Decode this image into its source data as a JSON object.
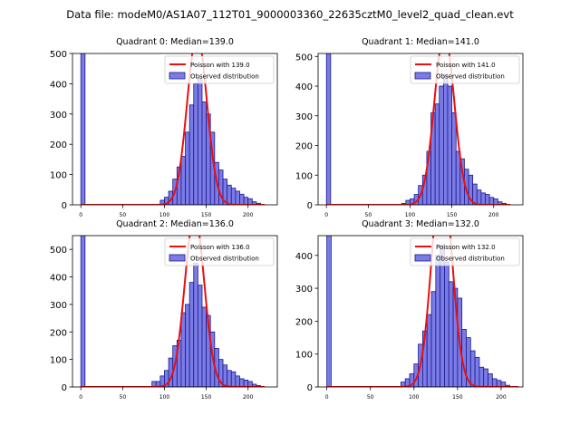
{
  "figure": {
    "suptitle": "Data file: modeM0/AS1A07_112T01_9000003360_22635cztM0_level2_quad_clean.evt"
  },
  "colors": {
    "bar_fill": "#7b7be6",
    "bar_edge": "#1a1a8c",
    "poisson_line": "#e81010"
  },
  "chart_data": [
    {
      "type": "bar",
      "title": "Quadrant 0: Median=139.0",
      "median": 139.0,
      "bin_width": 5,
      "xlim": [
        -10,
        235
      ],
      "ylim": [
        0,
        500
      ],
      "xticks": [
        0,
        50,
        100,
        150,
        200
      ],
      "yticks": [
        0,
        100,
        200,
        300,
        400,
        500
      ],
      "legend": [
        "Poisson with 139.0",
        "Observed distribution"
      ],
      "legend_position": "top-right",
      "bins": [
        [
          0,
          500
        ],
        [
          95,
          15
        ],
        [
          100,
          25
        ],
        [
          105,
          45
        ],
        [
          110,
          85
        ],
        [
          115,
          125
        ],
        [
          120,
          160
        ],
        [
          125,
          240
        ],
        [
          130,
          330
        ],
        [
          135,
          400
        ],
        [
          140,
          420
        ],
        [
          145,
          340
        ],
        [
          150,
          300
        ],
        [
          155,
          240
        ],
        [
          160,
          140
        ],
        [
          165,
          115
        ],
        [
          170,
          85
        ],
        [
          175,
          65
        ],
        [
          180,
          55
        ],
        [
          185,
          45
        ],
        [
          190,
          35
        ],
        [
          195,
          25
        ],
        [
          200,
          20
        ],
        [
          205,
          10
        ],
        [
          210,
          5
        ]
      ]
    },
    {
      "type": "bar",
      "title": "Quadrant 1: Median=141.0",
      "median": 141.0,
      "bin_width": 5,
      "xlim": [
        -10,
        235
      ],
      "ylim": [
        0,
        510
      ],
      "xticks": [
        0,
        50,
        100,
        150,
        200
      ],
      "yticks": [
        0,
        100,
        200,
        300,
        400,
        500
      ],
      "legend": [
        "Poisson with 141.0",
        "Observed distribution"
      ],
      "legend_position": "top-right",
      "bins": [
        [
          0,
          510
        ],
        [
          90,
          5
        ],
        [
          95,
          15
        ],
        [
          100,
          20
        ],
        [
          105,
          35
        ],
        [
          110,
          65
        ],
        [
          115,
          100
        ],
        [
          120,
          180
        ],
        [
          125,
          310
        ],
        [
          130,
          340
        ],
        [
          135,
          400
        ],
        [
          140,
          440
        ],
        [
          145,
          400
        ],
        [
          150,
          310
        ],
        [
          155,
          180
        ],
        [
          160,
          155
        ],
        [
          165,
          120
        ],
        [
          170,
          100
        ],
        [
          175,
          70
        ],
        [
          180,
          50
        ],
        [
          185,
          40
        ],
        [
          190,
          35
        ],
        [
          195,
          25
        ],
        [
          200,
          20
        ],
        [
          205,
          10
        ],
        [
          210,
          5
        ]
      ]
    },
    {
      "type": "bar",
      "title": "Quadrant 2: Median=136.0",
      "median": 136.0,
      "bin_width": 5,
      "xlim": [
        -10,
        235
      ],
      "ylim": [
        0,
        550
      ],
      "xticks": [
        0,
        50,
        100,
        150,
        200
      ],
      "yticks": [
        0,
        100,
        200,
        300,
        400,
        500
      ],
      "legend": [
        "Poisson with 136.0",
        "Observed distribution"
      ],
      "legend_position": "top-right",
      "bins": [
        [
          0,
          550
        ],
        [
          85,
          20
        ],
        [
          90,
          20
        ],
        [
          95,
          40
        ],
        [
          100,
          60
        ],
        [
          105,
          105
        ],
        [
          110,
          150
        ],
        [
          115,
          170
        ],
        [
          120,
          270
        ],
        [
          125,
          300
        ],
        [
          130,
          380
        ],
        [
          135,
          450
        ],
        [
          140,
          370
        ],
        [
          145,
          290
        ],
        [
          150,
          260
        ],
        [
          155,
          200
        ],
        [
          160,
          140
        ],
        [
          165,
          100
        ],
        [
          170,
          80
        ],
        [
          175,
          60
        ],
        [
          180,
          55
        ],
        [
          185,
          40
        ],
        [
          190,
          30
        ],
        [
          195,
          25
        ],
        [
          200,
          20
        ],
        [
          205,
          10
        ],
        [
          210,
          5
        ]
      ]
    },
    {
      "type": "bar",
      "title": "Quadrant 3: Median=132.0",
      "median": 132.0,
      "bin_width": 5,
      "xlim": [
        -10,
        225
      ],
      "ylim": [
        0,
        460
      ],
      "xticks": [
        0,
        50,
        100,
        150,
        200
      ],
      "yticks": [
        0,
        100,
        200,
        300,
        400
      ],
      "legend": [
        "Poisson with 132.0",
        "Observed distribution"
      ],
      "legend_position": "top-right",
      "bins": [
        [
          0,
          460
        ],
        [
          85,
          15
        ],
        [
          90,
          25
        ],
        [
          95,
          40
        ],
        [
          100,
          70
        ],
        [
          105,
          130
        ],
        [
          110,
          170
        ],
        [
          115,
          220
        ],
        [
          120,
          290
        ],
        [
          125,
          400
        ],
        [
          130,
          430
        ],
        [
          135,
          380
        ],
        [
          140,
          320
        ],
        [
          145,
          300
        ],
        [
          150,
          270
        ],
        [
          155,
          175
        ],
        [
          160,
          150
        ],
        [
          165,
          110
        ],
        [
          170,
          90
        ],
        [
          175,
          60
        ],
        [
          180,
          55
        ],
        [
          185,
          40
        ],
        [
          190,
          25
        ],
        [
          195,
          20
        ],
        [
          200,
          15
        ],
        [
          205,
          5
        ]
      ]
    }
  ]
}
